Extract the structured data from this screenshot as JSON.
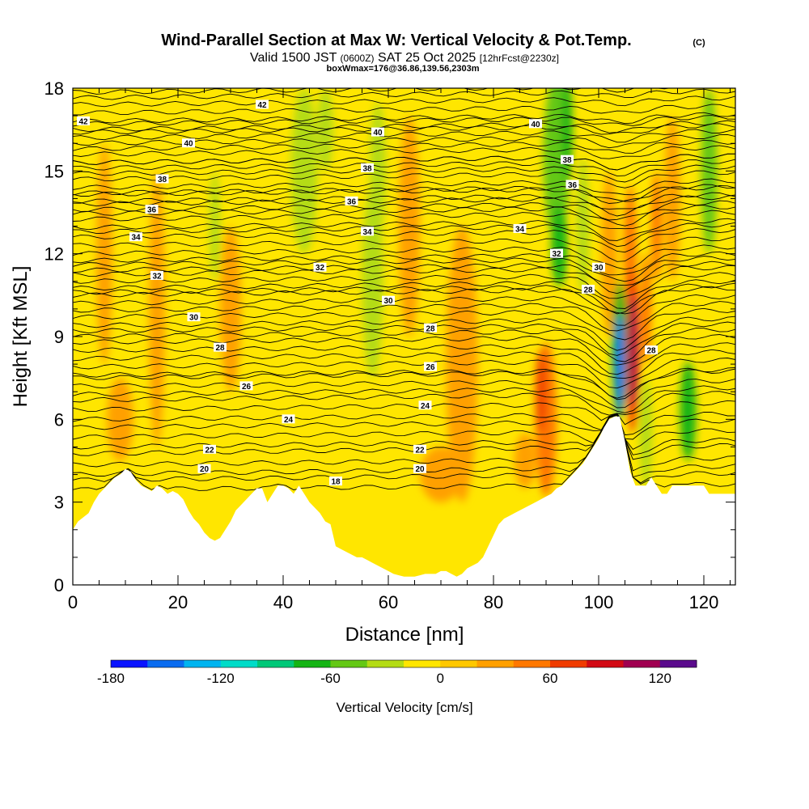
{
  "chart_data": {
    "type": "heatmap",
    "title": "Wind-Parallel Section at Max W: Vertical Velocity & Pot.Temp.",
    "title_mark": "(C)",
    "subtitle_parts": [
      "Valid 1500 JST ",
      "(0600Z)",
      " SAT 25 Oct 2025 ",
      "[12hrFcst@2230z]"
    ],
    "subtitle2": "boxWmax=176@36.86,139.56,2303m",
    "xlabel": "Distance [nm]",
    "ylabel": "Height [Kft MSL]",
    "xlim": [
      0,
      126
    ],
    "ylim": [
      0,
      18
    ],
    "xticks": [
      0,
      20,
      40,
      60,
      80,
      100,
      120
    ],
    "yticks": [
      0,
      3,
      6,
      9,
      12,
      15,
      18
    ],
    "background_color": "#ffe600",
    "colorbar": {
      "label": "Vertical Velocity [cm/s]",
      "ticks": [
        -180,
        -120,
        -60,
        0,
        60,
        120
      ],
      "range": [
        -180,
        140
      ],
      "bin": 20,
      "colors": [
        "#0a14ff",
        "#0a6cf0",
        "#00b4f0",
        "#00dcc8",
        "#00c878",
        "#14b414",
        "#64c814",
        "#b4dc14",
        "#ffe600",
        "#ffc800",
        "#ffa000",
        "#ff7800",
        "#f03c00",
        "#d20a14",
        "#a00050",
        "#5a0a8c"
      ]
    },
    "terrain_profile": [
      [
        0,
        2
      ],
      [
        1,
        2.3
      ],
      [
        3,
        2.6
      ],
      [
        4,
        3
      ],
      [
        5,
        3.3
      ],
      [
        7,
        3.7
      ],
      [
        8,
        3.9
      ],
      [
        9,
        4
      ],
      [
        10,
        4.2
      ],
      [
        11,
        4.1
      ],
      [
        12,
        3.8
      ],
      [
        13,
        3.6
      ],
      [
        14,
        3.5
      ],
      [
        15,
        3.4
      ],
      [
        16,
        3.6
      ],
      [
        17,
        3.5
      ],
      [
        18,
        3.3
      ],
      [
        19,
        3.4
      ],
      [
        20,
        3.3
      ],
      [
        21,
        3.1
      ],
      [
        22,
        2.7
      ],
      [
        23,
        2.4
      ],
      [
        24,
        2.2
      ],
      [
        25,
        1.9
      ],
      [
        26,
        1.7
      ],
      [
        27,
        1.6
      ],
      [
        28,
        1.7
      ],
      [
        29,
        2
      ],
      [
        30,
        2.3
      ],
      [
        31,
        2.7
      ],
      [
        32,
        2.9
      ],
      [
        33,
        3.1
      ],
      [
        34,
        3.3
      ],
      [
        35,
        3.5
      ],
      [
        36,
        3.5
      ],
      [
        37,
        3
      ],
      [
        38,
        3.3
      ],
      [
        39,
        3.6
      ],
      [
        40,
        3.6
      ],
      [
        41,
        3.5
      ],
      [
        42,
        3.3
      ],
      [
        43,
        3.6
      ],
      [
        44,
        3.3
      ],
      [
        45,
        3
      ],
      [
        46,
        2.8
      ],
      [
        47,
        2.6
      ],
      [
        48,
        2.3
      ],
      [
        49,
        2.2
      ],
      [
        50,
        1.4
      ],
      [
        51,
        1.3
      ],
      [
        52,
        1.2
      ],
      [
        53,
        1.1
      ],
      [
        54,
        1
      ],
      [
        55,
        1
      ],
      [
        56,
        0.9
      ],
      [
        57,
        0.8
      ],
      [
        58,
        0.7
      ],
      [
        59,
        0.6
      ],
      [
        60,
        0.5
      ],
      [
        61,
        0.4
      ],
      [
        62,
        0.35
      ],
      [
        63,
        0.3
      ],
      [
        64,
        0.3
      ],
      [
        65,
        0.3
      ],
      [
        66,
        0.35
      ],
      [
        67,
        0.4
      ],
      [
        68,
        0.4
      ],
      [
        69,
        0.4
      ],
      [
        70,
        0.5
      ],
      [
        71,
        0.5
      ],
      [
        72,
        0.4
      ],
      [
        73,
        0.3
      ],
      [
        74,
        0.4
      ],
      [
        75,
        0.6
      ],
      [
        76,
        0.7
      ],
      [
        77,
        0.8
      ],
      [
        78,
        1
      ],
      [
        79,
        1.4
      ],
      [
        80,
        1.8
      ],
      [
        81,
        2.2
      ],
      [
        82,
        2.4
      ],
      [
        83,
        2.5
      ],
      [
        84,
        2.6
      ],
      [
        85,
        2.7
      ],
      [
        86,
        2.8
      ],
      [
        87,
        2.9
      ],
      [
        88,
        3
      ],
      [
        89,
        3.1
      ],
      [
        90,
        3.2
      ],
      [
        91,
        3.3
      ],
      [
        92,
        3.5
      ],
      [
        93,
        3.6
      ],
      [
        94,
        3.8
      ],
      [
        95,
        4
      ],
      [
        96,
        4.2
      ],
      [
        97,
        4.4
      ],
      [
        98,
        4.7
      ],
      [
        99,
        5
      ],
      [
        100,
        5.3
      ],
      [
        101,
        5.7
      ],
      [
        102,
        6
      ],
      [
        103,
        6.1
      ],
      [
        104,
        6.1
      ],
      [
        105,
        5.2
      ],
      [
        106,
        4.1
      ],
      [
        107,
        3.6
      ],
      [
        108,
        3.6
      ],
      [
        109,
        3.6
      ],
      [
        110,
        3.9
      ],
      [
        111,
        3.6
      ],
      [
        112,
        3.3
      ],
      [
        113,
        3.3
      ],
      [
        114,
        3.6
      ],
      [
        115,
        3.6
      ],
      [
        116,
        3.6
      ],
      [
        117,
        3.6
      ],
      [
        118,
        3.6
      ],
      [
        119,
        3.6
      ],
      [
        120,
        3.6
      ],
      [
        121,
        3.3
      ],
      [
        122,
        3.3
      ],
      [
        123,
        3.3
      ],
      [
        124,
        3.3
      ],
      [
        125,
        3.3
      ],
      [
        126,
        3.3
      ]
    ],
    "velocity_features": [
      {
        "x": 9,
        "y": 6.0,
        "rx": 2.5,
        "ry": 1.5,
        "w": 20
      },
      {
        "x": 6,
        "y": 12,
        "rx": 1.5,
        "ry": 4,
        "w": 20
      },
      {
        "x": 16,
        "y": 10,
        "rx": 1.5,
        "ry": 5,
        "w": 20
      },
      {
        "x": 30,
        "y": 10,
        "rx": 2,
        "ry": 3,
        "w": 20
      },
      {
        "x": 44,
        "y": 15,
        "rx": 2.5,
        "ry": 3,
        "w": -40
      },
      {
        "x": 48,
        "y": 16.5,
        "rx": 1.5,
        "ry": 1.5,
        "w": -40
      },
      {
        "x": 57,
        "y": 11,
        "rx": 2,
        "ry": 3.5,
        "w": -40
      },
      {
        "x": 58,
        "y": 15,
        "rx": 1.5,
        "ry": 2.5,
        "w": -40
      },
      {
        "x": 27,
        "y": 13,
        "rx": 1,
        "ry": 2,
        "w": -40
      },
      {
        "x": 64,
        "y": 13,
        "rx": 2,
        "ry": 4,
        "w": 20
      },
      {
        "x": 74,
        "y": 8,
        "rx": 3,
        "ry": 5,
        "w": 20
      },
      {
        "x": 70,
        "y": 4,
        "rx": 4,
        "ry": 1,
        "w": 20
      },
      {
        "x": 86,
        "y": 4.5,
        "rx": 2,
        "ry": 1,
        "w": 20
      },
      {
        "x": 90,
        "y": 6,
        "rx": 2,
        "ry": 2.8,
        "w": 40
      },
      {
        "x": 89,
        "y": 7,
        "rx": 1,
        "ry": 1.5,
        "w": 60
      },
      {
        "x": 92,
        "y": 15.5,
        "rx": 2.5,
        "ry": 3,
        "w": -60
      },
      {
        "x": 92.5,
        "y": 12.3,
        "rx": 1.5,
        "ry": 1.5,
        "w": -80
      },
      {
        "x": 94,
        "y": 16.5,
        "rx": 1,
        "ry": 2,
        "w": -80
      },
      {
        "x": 97,
        "y": 13,
        "rx": 1.2,
        "ry": 2.5,
        "w": -40
      },
      {
        "x": 102,
        "y": 12,
        "rx": 1.5,
        "ry": 3,
        "w": 20
      },
      {
        "x": 106,
        "y": 12,
        "rx": 1.2,
        "ry": 2.5,
        "w": 40
      },
      {
        "x": 104,
        "y": 8.5,
        "rx": 1.5,
        "ry": 2.5,
        "w": -80
      },
      {
        "x": 104,
        "y": 8,
        "rx": 0.8,
        "ry": 1.8,
        "w": -160
      },
      {
        "x": 106.5,
        "y": 8.5,
        "rx": 1.3,
        "ry": 3,
        "w": 60
      },
      {
        "x": 106.5,
        "y": 8.5,
        "rx": 0.8,
        "ry": 2,
        "w": 100
      },
      {
        "x": 109,
        "y": 10,
        "rx": 1,
        "ry": 2,
        "w": 40
      },
      {
        "x": 109,
        "y": 5.5,
        "rx": 1.2,
        "ry": 2,
        "w": -40
      },
      {
        "x": 117,
        "y": 6.3,
        "rx": 1.5,
        "ry": 1.8,
        "w": -80
      },
      {
        "x": 111,
        "y": 13,
        "rx": 1,
        "ry": 2,
        "w": 40
      },
      {
        "x": 121,
        "y": 15,
        "rx": 1.5,
        "ry": 3,
        "w": -60
      },
      {
        "x": 114,
        "y": 14,
        "rx": 1.5,
        "ry": 3,
        "w": 20
      }
    ],
    "theta_contours": [
      {
        "label": "18",
        "base": 3.45,
        "rise": 0.2,
        "lx": 50,
        "ly": 3.75
      },
      {
        "label": "20",
        "base": 4.0,
        "rise": 0.3,
        "lx": 25,
        "ly": 4.2
      },
      {
        "label": "20",
        "base": 4.0,
        "rise": 0.3,
        "lx": 66,
        "ly": 4.2
      },
      {
        "label": "22",
        "base": 4.75,
        "rise": 0.3,
        "lx": 26,
        "ly": 4.9
      },
      {
        "label": "22",
        "base": 4.75,
        "rise": 0.3,
        "lx": 66,
        "ly": 4.9
      },
      {
        "label": "24",
        "base": 6.0,
        "rise": 0.2,
        "lx": 41,
        "ly": 6.0
      },
      {
        "label": "24",
        "base": 6.0,
        "rise": 0.2,
        "lx": 67,
        "ly": 6.5
      },
      {
        "label": "26",
        "base": 7.2,
        "rise": 0.2,
        "lx": 33,
        "ly": 7.2
      },
      {
        "label": "26",
        "base": 7.6,
        "rise": 0.2,
        "lx": 68,
        "ly": 7.9
      },
      {
        "label": "28",
        "base": 8.5,
        "rise": 0.2,
        "lx": 28,
        "ly": 8.6
      },
      {
        "label": "28",
        "base": 8.8,
        "rise": 0.2,
        "lx": 68,
        "ly": 9.3
      },
      {
        "label": "28",
        "base": 8.8,
        "rise": 0.2,
        "lx": 110,
        "ly": 8.5
      },
      {
        "label": "30",
        "base": 9.7,
        "rise": 0.25,
        "lx": 23,
        "ly": 9.7
      },
      {
        "label": "30",
        "base": 10.2,
        "rise": 0.25,
        "lx": 60,
        "ly": 10.3
      },
      {
        "label": "30",
        "base": 10.6,
        "rise": 0.25,
        "lx": 100,
        "ly": 11.5
      },
      {
        "label": "28",
        "base": 9.2,
        "rise": 0.25,
        "lx": 98,
        "ly": 10.7
      },
      {
        "label": "32",
        "base": 11.0,
        "rise": 0.25,
        "lx": 16,
        "ly": 11.2
      },
      {
        "label": "32",
        "base": 11.4,
        "rise": 0.25,
        "lx": 47,
        "ly": 11.5
      },
      {
        "label": "32",
        "base": 11.6,
        "rise": 0.25,
        "lx": 92,
        "ly": 12.0
      },
      {
        "label": "34",
        "base": 12.6,
        "rise": 0.25,
        "lx": 12,
        "ly": 12.6
      },
      {
        "label": "34",
        "base": 12.8,
        "rise": 0.25,
        "lx": 56,
        "ly": 12.8
      },
      {
        "label": "34",
        "base": 12.8,
        "rise": 0.25,
        "lx": 85,
        "ly": 12.9
      },
      {
        "label": "36",
        "base": 13.6,
        "rise": 0.25,
        "lx": 15,
        "ly": 13.6
      },
      {
        "label": "36",
        "base": 13.9,
        "rise": 0.25,
        "lx": 53,
        "ly": 13.9
      },
      {
        "label": "36",
        "base": 14.2,
        "rise": 0.25,
        "lx": 95,
        "ly": 14.5
      },
      {
        "label": "38",
        "base": 14.7,
        "rise": 0.25,
        "lx": 17,
        "ly": 14.7
      },
      {
        "label": "38",
        "base": 15.1,
        "rise": 0.25,
        "lx": 56,
        "ly": 15.1
      },
      {
        "label": "38",
        "base": 15.3,
        "rise": 0.25,
        "lx": 94,
        "ly": 15.4
      },
      {
        "label": "40",
        "base": 16.0,
        "rise": 0.25,
        "lx": 22,
        "ly": 16.0
      },
      {
        "label": "40",
        "base": 16.4,
        "rise": 0.25,
        "lx": 58,
        "ly": 16.4
      },
      {
        "label": "40",
        "base": 16.7,
        "rise": 0.25,
        "lx": 88,
        "ly": 16.7
      },
      {
        "label": "42",
        "base": 16.8,
        "rise": 0.25,
        "lx": 2,
        "ly": 16.8
      },
      {
        "label": "42",
        "base": 17.4,
        "rise": 0.25,
        "lx": 36,
        "ly": 17.4
      }
    ],
    "unlabeled_contour_levels": [
      3.8,
      4.35,
      5.0,
      5.35,
      5.7,
      6.35,
      6.7,
      6.9,
      7.5,
      7.9,
      8.2,
      9.0,
      9.4,
      9.95,
      10.5,
      10.75,
      11.25,
      11.75,
      12.0,
      12.3,
      12.95,
      13.25,
      13.45,
      13.8,
      14.15,
      14.4,
      14.9,
      15.3,
      15.6,
      15.8,
      16.2,
      16.5,
      17.1,
      17.65,
      17.85
    ]
  }
}
